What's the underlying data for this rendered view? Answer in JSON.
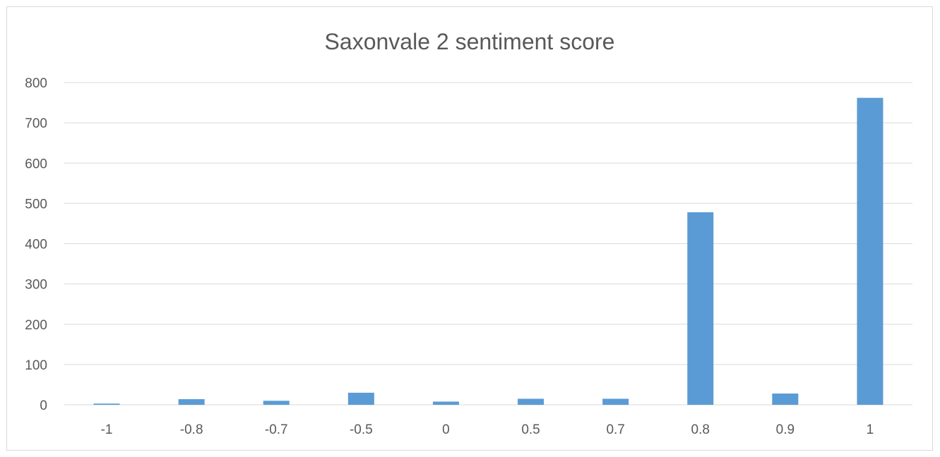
{
  "chart_data": {
    "type": "bar",
    "title": "Saxonvale 2 sentiment score",
    "xlabel": "",
    "ylabel": "",
    "categories": [
      "-1",
      "-0.8",
      "-0.7",
      "-0.5",
      "0",
      "0.5",
      "0.7",
      "0.8",
      "0.9",
      "1"
    ],
    "values": [
      3,
      14,
      10,
      30,
      8,
      15,
      15,
      478,
      28,
      762
    ],
    "ylim": [
      0,
      800
    ],
    "yticks": [
      "0",
      "100",
      "200",
      "300",
      "400",
      "500",
      "600",
      "700",
      "800"
    ],
    "grid": true,
    "legend": "none",
    "bar_color": "#5b9bd5"
  }
}
